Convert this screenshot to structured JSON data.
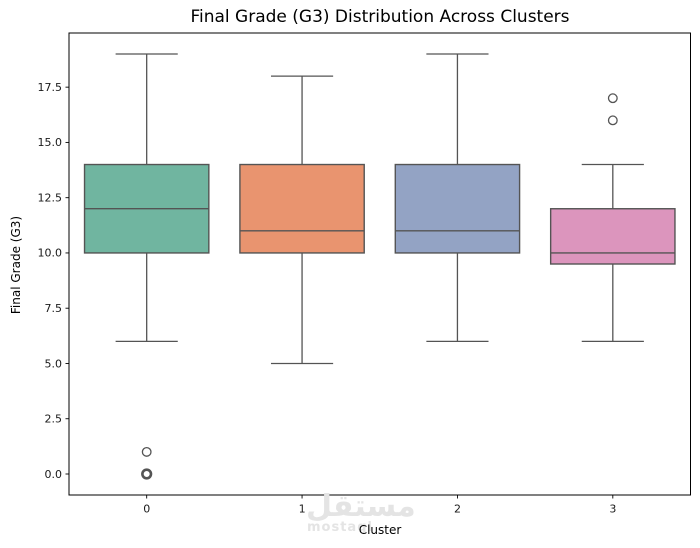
{
  "chart_data": {
    "type": "boxplot",
    "title": "Final Grade (G3) Distribution Across Clusters",
    "xlabel": "Cluster",
    "ylabel": "Final Grade (G3)",
    "categories": [
      "0",
      "1",
      "2",
      "3"
    ],
    "series": [
      {
        "name": "Cluster 0",
        "color": "#70b5a0",
        "whisker_low": 6,
        "q1": 10,
        "median": 12,
        "q3": 14,
        "whisker_high": 19,
        "outliers": [
          1,
          0,
          0
        ]
      },
      {
        "name": "Cluster 1",
        "color": "#e9946f",
        "whisker_low": 5,
        "q1": 10,
        "median": 11,
        "q3": 14,
        "whisker_high": 18,
        "outliers": []
      },
      {
        "name": "Cluster 2",
        "color": "#93a3c4",
        "whisker_low": 6,
        "q1": 10,
        "median": 11,
        "q3": 14,
        "whisker_high": 19,
        "outliers": []
      },
      {
        "name": "Cluster 3",
        "color": "#dc95bd",
        "whisker_low": 6,
        "q1": 9.5,
        "median": 10,
        "q3": 12,
        "whisker_high": 14,
        "outliers": [
          16,
          17
        ]
      }
    ],
    "yticks": {
      "values": [
        0,
        2.5,
        5,
        7.5,
        10,
        12.5,
        15,
        17.5
      ],
      "labels": [
        "0.0",
        "2.5",
        "5.0",
        "7.5",
        "10.0",
        "12.5",
        "15.0",
        "17.5"
      ]
    },
    "xlim": [
      -0.5,
      3.5
    ],
    "ylim": [
      -0.95,
      19.95
    ],
    "grid": false,
    "legend": null,
    "box_width": 0.8,
    "cap_width": 0.4,
    "line_color": "#545454",
    "spine_color": "#000000",
    "background": "#ffffff"
  },
  "watermark": {
    "arabic": "مستقل",
    "latin": "mostaql",
    "color": "#e4e4e4"
  }
}
